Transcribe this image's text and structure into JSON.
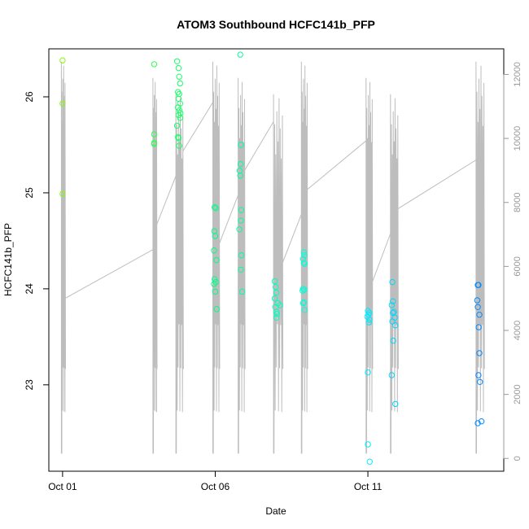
{
  "chart_data": {
    "type": "scatter",
    "title": "ATOM3 Southbound HCFC141b_PFP",
    "xlabel": "Date",
    "ylabel": "HCFC141b_PFP",
    "x_ticks": [
      {
        "label": "Oct 01",
        "day": 0
      },
      {
        "label": "Oct 06",
        "day": 5
      },
      {
        "label": "Oct 11",
        "day": 10
      }
    ],
    "xlim_days": [
      -0.45,
      14.45
    ],
    "ylim": [
      22.1,
      26.5
    ],
    "y_ticks": [
      23,
      24,
      25,
      26
    ],
    "y2_ticks": [
      0,
      2000,
      4000,
      6000,
      8000,
      10000,
      12000
    ],
    "y2lim": [
      -400,
      12800
    ],
    "grid": false,
    "point_gradient": [
      "#7fff00",
      "#00ff7f",
      "#00ffff",
      "#0080ff"
    ],
    "flights": [
      {
        "points": [
          [
            0.0,
            26.38
          ],
          [
            0.0,
            25.93
          ],
          [
            0.0,
            24.99
          ]
        ]
      },
      {
        "points": [
          [
            3.0,
            26.34
          ],
          [
            3.0,
            25.61
          ],
          [
            3.0,
            25.52
          ],
          [
            3.0,
            25.51
          ]
        ]
      },
      {
        "points": [
          [
            3.75,
            26.37
          ],
          [
            3.8,
            26.3
          ],
          [
            3.82,
            26.21
          ],
          [
            3.85,
            26.14
          ],
          [
            3.78,
            26.05
          ],
          [
            3.82,
            26.03
          ],
          [
            3.8,
            25.98
          ],
          [
            3.85,
            25.93
          ],
          [
            3.78,
            25.89
          ],
          [
            3.83,
            25.86
          ],
          [
            3.86,
            25.83
          ],
          [
            3.8,
            25.81
          ],
          [
            3.85,
            25.78
          ],
          [
            3.75,
            25.7
          ],
          [
            3.78,
            25.58
          ],
          [
            3.8,
            25.57
          ],
          [
            3.82,
            25.49
          ]
        ]
      },
      {
        "points": [
          [
            4.98,
            24.85
          ],
          [
            5.02,
            24.84
          ],
          [
            4.97,
            24.6
          ],
          [
            5.0,
            24.55
          ],
          [
            4.96,
            24.4
          ],
          [
            5.04,
            24.3
          ],
          [
            4.98,
            24.1
          ],
          [
            5.02,
            24.07
          ],
          [
            4.96,
            24.05
          ],
          [
            5.0,
            23.97
          ],
          [
            5.05,
            23.79
          ]
        ]
      },
      {
        "points": [
          [
            5.82,
            26.44
          ],
          [
            5.84,
            25.5
          ],
          [
            5.83,
            25.3
          ],
          [
            5.8,
            25.23
          ],
          [
            5.82,
            25.18
          ],
          [
            5.85,
            24.82
          ],
          [
            5.84,
            24.71
          ],
          [
            5.79,
            24.62
          ],
          [
            5.86,
            24.35
          ],
          [
            5.84,
            24.2
          ],
          [
            5.88,
            23.97
          ]
        ]
      },
      {
        "points": [
          [
            6.95,
            24.08
          ],
          [
            6.98,
            24.02
          ],
          [
            7.0,
            23.96
          ],
          [
            6.95,
            23.9
          ],
          [
            7.05,
            23.85
          ],
          [
            7.12,
            23.83
          ],
          [
            6.97,
            23.81
          ],
          [
            7.0,
            23.76
          ],
          [
            7.02,
            23.74
          ],
          [
            7.0,
            23.7
          ]
        ]
      },
      {
        "points": [
          [
            7.9,
            24.38
          ],
          [
            7.92,
            24.35
          ],
          [
            7.88,
            24.31
          ],
          [
            7.9,
            24.27
          ],
          [
            7.93,
            24.26
          ],
          [
            7.88,
            24.0
          ],
          [
            7.92,
            23.99
          ],
          [
            7.86,
            23.98
          ],
          [
            7.9,
            23.86
          ],
          [
            7.88,
            23.85
          ],
          [
            7.93,
            23.78
          ]
        ]
      },
      {
        "points": [
          [
            10.0,
            23.77
          ],
          [
            10.04,
            23.75
          ],
          [
            10.02,
            23.73
          ],
          [
            9.98,
            23.71
          ],
          [
            10.05,
            23.68
          ],
          [
            10.03,
            23.65
          ],
          [
            10.0,
            23.13
          ],
          [
            10.0,
            22.38
          ],
          [
            10.06,
            22.2
          ]
        ]
      },
      {
        "points": [
          [
            10.8,
            24.07
          ],
          [
            10.82,
            23.87
          ],
          [
            10.78,
            23.83
          ],
          [
            10.85,
            23.76
          ],
          [
            10.82,
            23.75
          ],
          [
            10.88,
            23.7
          ],
          [
            10.8,
            23.66
          ],
          [
            10.9,
            23.62
          ],
          [
            10.83,
            23.46
          ],
          [
            10.78,
            23.1
          ],
          [
            10.9,
            22.8
          ]
        ]
      },
      {
        "points": [
          [
            13.6,
            24.04
          ],
          [
            13.62,
            24.04
          ],
          [
            13.58,
            23.88
          ],
          [
            13.6,
            23.81
          ],
          [
            13.65,
            23.73
          ],
          [
            13.63,
            23.6
          ],
          [
            13.65,
            23.33
          ],
          [
            13.62,
            23.1
          ],
          [
            13.67,
            23.03
          ],
          [
            13.72,
            22.62
          ],
          [
            13.6,
            22.6
          ]
        ]
      }
    ]
  }
}
